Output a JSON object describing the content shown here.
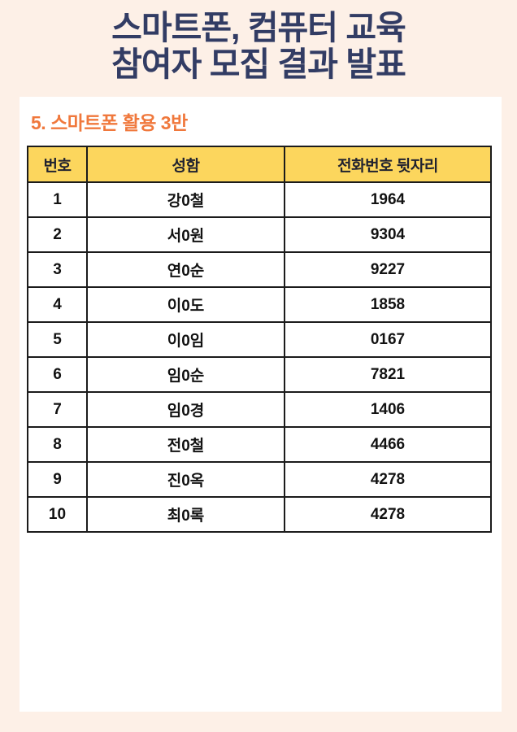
{
  "page": {
    "title_line1": "스마트폰, 컴퓨터 교육",
    "title_line2": "참여자 모집 결과 발표",
    "section_title": "5. 스마트폰 활용 3반"
  },
  "table": {
    "headers": [
      "번호",
      "성함",
      "전화번호 뒷자리"
    ],
    "rows": [
      {
        "no": "1",
        "name": "강0철",
        "phone": "1964"
      },
      {
        "no": "2",
        "name": "서0원",
        "phone": "9304"
      },
      {
        "no": "3",
        "name": "연0순",
        "phone": "9227"
      },
      {
        "no": "4",
        "name": "이0도",
        "phone": "1858"
      },
      {
        "no": "5",
        "name": "이0임",
        "phone": "0167"
      },
      {
        "no": "6",
        "name": "임0순",
        "phone": "7821"
      },
      {
        "no": "7",
        "name": "임0경",
        "phone": "1406"
      },
      {
        "no": "8",
        "name": "전0철",
        "phone": "4466"
      },
      {
        "no": "9",
        "name": "진0옥",
        "phone": "4278"
      },
      {
        "no": "10",
        "name": "최0록",
        "phone": "4278"
      }
    ]
  },
  "colors": {
    "page_background": "#fdf0e7",
    "card_background": "#ffffff",
    "title_navy": "#323c64",
    "accent_orange": "#f0783c",
    "header_yellow": "#fcd65d",
    "table_border": "#1b1b1b"
  }
}
